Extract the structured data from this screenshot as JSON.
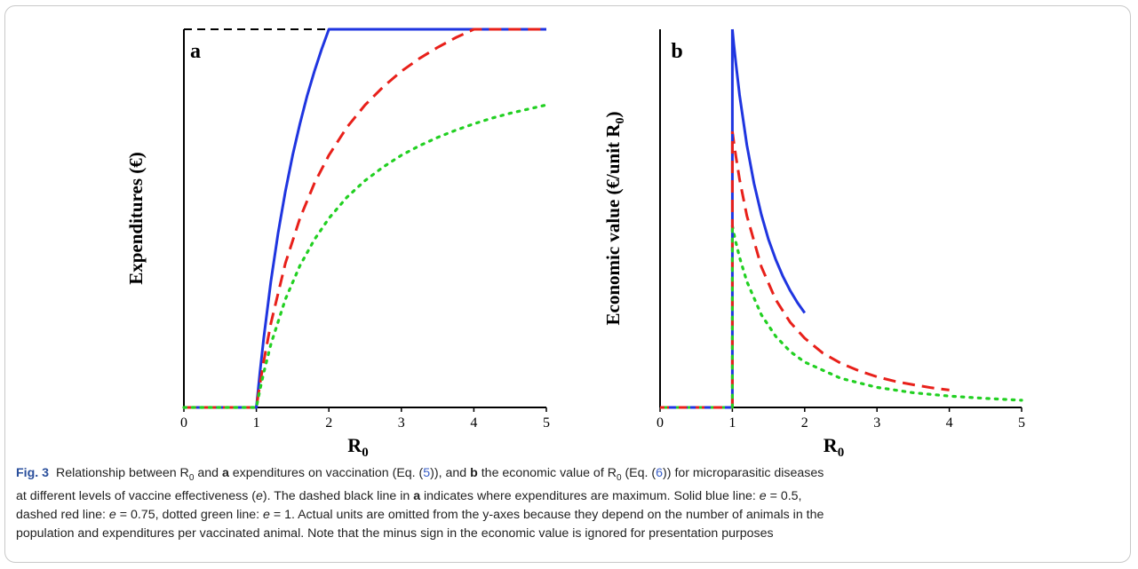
{
  "figure": {
    "label": "Fig. 3",
    "caption_segments": [
      {
        "t": "Relationship between R",
        "c": ""
      },
      {
        "t": "0",
        "c": "sub"
      },
      {
        "t": " and ",
        "c": ""
      },
      {
        "t": "a",
        "c": "b"
      },
      {
        "t": " expenditures on vaccination (Eq. (",
        "c": ""
      },
      {
        "t": "5",
        "c": "link"
      },
      {
        "t": ")), and ",
        "c": ""
      },
      {
        "t": "b",
        "c": "b"
      },
      {
        "t": " the economic value of R",
        "c": ""
      },
      {
        "t": "0",
        "c": "sub"
      },
      {
        "t": " (Eq. (",
        "c": ""
      },
      {
        "t": "6",
        "c": "link"
      },
      {
        "t": ")) for microparasitic diseases",
        "c": ""
      },
      {
        "t": "",
        "c": "br"
      },
      {
        "t": "at different levels of vaccine effectiveness (",
        "c": ""
      },
      {
        "t": "e",
        "c": "it"
      },
      {
        "t": "). The dashed black line in ",
        "c": ""
      },
      {
        "t": "a",
        "c": "b"
      },
      {
        "t": " indicates where expenditures are maximum. Solid blue line: ",
        "c": ""
      },
      {
        "t": "e",
        "c": "it"
      },
      {
        "t": " = 0.5,",
        "c": ""
      },
      {
        "t": "",
        "c": "br"
      },
      {
        "t": "dashed red line: ",
        "c": ""
      },
      {
        "t": "e",
        "c": "it"
      },
      {
        "t": " = 0.75, dotted green line: ",
        "c": ""
      },
      {
        "t": "e",
        "c": "it"
      },
      {
        "t": " = 1. Actual units are omitted from the y-axes because they depend on the number of animals in the",
        "c": ""
      },
      {
        "t": "",
        "c": "br"
      },
      {
        "t": "population and expenditures per vaccinated animal. Note that the minus sign in the economic value is ignored for presentation purposes",
        "c": ""
      }
    ]
  },
  "colors": {
    "blue": "#1f35e0",
    "red": "#e8201a",
    "green": "#22d022",
    "black": "#000000"
  },
  "chart_data": [
    {
      "type": "line",
      "panel_letter": "a",
      "xlabel": "R",
      "xlabel_sub": "0",
      "ylabel": "Expenditures (€)",
      "xlim": [
        0,
        5
      ],
      "ylim": [
        0,
        1
      ],
      "x_ticks": [
        "0",
        "1",
        "2",
        "3",
        "4",
        "5"
      ],
      "y_ticks_shown": false,
      "reference_line": {
        "style": "dashed",
        "color": "black",
        "y": 1,
        "x_range": [
          0,
          2
        ]
      },
      "series": [
        {
          "style": "solid",
          "color": "blue",
          "x": [
            0,
            1,
            1.05,
            1.1,
            1.2,
            1.3,
            1.4,
            1.5,
            1.6,
            1.7,
            1.8,
            1.9,
            2,
            3,
            4,
            5
          ],
          "y": [
            0,
            0,
            0.095,
            0.182,
            0.333,
            0.462,
            0.571,
            0.667,
            0.75,
            0.824,
            0.889,
            0.947,
            1,
            1,
            1,
            1
          ]
        },
        {
          "style": "dashed",
          "color": "red",
          "x": [
            0,
            1,
            1.05,
            1.1,
            1.2,
            1.4,
            1.6,
            1.8,
            2,
            2.25,
            2.5,
            2.75,
            3,
            3.25,
            3.5,
            3.75,
            4,
            4.5,
            5
          ],
          "y": [
            0,
            0,
            0.063,
            0.121,
            0.222,
            0.381,
            0.5,
            0.593,
            0.667,
            0.741,
            0.8,
            0.848,
            0.889,
            0.923,
            0.952,
            0.978,
            1,
            1,
            1
          ]
        },
        {
          "style": "dotted",
          "color": "green",
          "x": [
            0,
            1,
            1.05,
            1.1,
            1.2,
            1.4,
            1.6,
            1.8,
            2,
            2.25,
            2.5,
            2.75,
            3,
            3.25,
            3.5,
            3.75,
            4,
            4.25,
            4.5,
            4.75,
            5
          ],
          "y": [
            0,
            0,
            0.048,
            0.091,
            0.167,
            0.286,
            0.375,
            0.444,
            0.5,
            0.556,
            0.6,
            0.636,
            0.667,
            0.692,
            0.714,
            0.733,
            0.75,
            0.765,
            0.778,
            0.789,
            0.8
          ]
        }
      ]
    },
    {
      "type": "line",
      "panel_letter": "b",
      "xlabel": "R",
      "xlabel_sub": "0",
      "ylabel": "Economic value (€/unit R",
      "ylabel_sub": "0",
      "ylabel_close": ")",
      "xlim": [
        0,
        5
      ],
      "ylim": [
        0,
        1
      ],
      "x_ticks": [
        "0",
        "1",
        "2",
        "3",
        "4",
        "5"
      ],
      "y_ticks_shown": false,
      "series": [
        {
          "style": "solid",
          "color": "blue",
          "x": [
            1,
            1.02,
            1.05,
            1.1,
            1.2,
            1.3,
            1.4,
            1.5,
            1.6,
            1.7,
            1.8,
            1.9,
            2
          ],
          "y": [
            1,
            0.961,
            0.907,
            0.826,
            0.694,
            0.592,
            0.51,
            0.444,
            0.391,
            0.346,
            0.309,
            0.277,
            0.25
          ]
        },
        {
          "style": "dashed",
          "color": "red",
          "x": [
            1,
            1.02,
            1.05,
            1.1,
            1.2,
            1.4,
            1.6,
            1.8,
            2,
            2.25,
            2.5,
            2.75,
            3,
            3.25,
            3.5,
            3.75,
            4
          ],
          "y": [
            0.73,
            0.702,
            0.662,
            0.603,
            0.507,
            0.372,
            0.285,
            0.225,
            0.183,
            0.144,
            0.117,
            0.097,
            0.081,
            0.069,
            0.06,
            0.052,
            0.046
          ]
        },
        {
          "style": "dotted",
          "color": "green",
          "x": [
            1,
            1.02,
            1.05,
            1.1,
            1.2,
            1.4,
            1.6,
            1.8,
            2,
            2.5,
            3,
            3.5,
            4,
            4.5,
            5
          ],
          "y": [
            0.48,
            0.461,
            0.435,
            0.397,
            0.333,
            0.245,
            0.188,
            0.148,
            0.12,
            0.077,
            0.053,
            0.039,
            0.03,
            0.024,
            0.019
          ]
        }
      ]
    }
  ]
}
